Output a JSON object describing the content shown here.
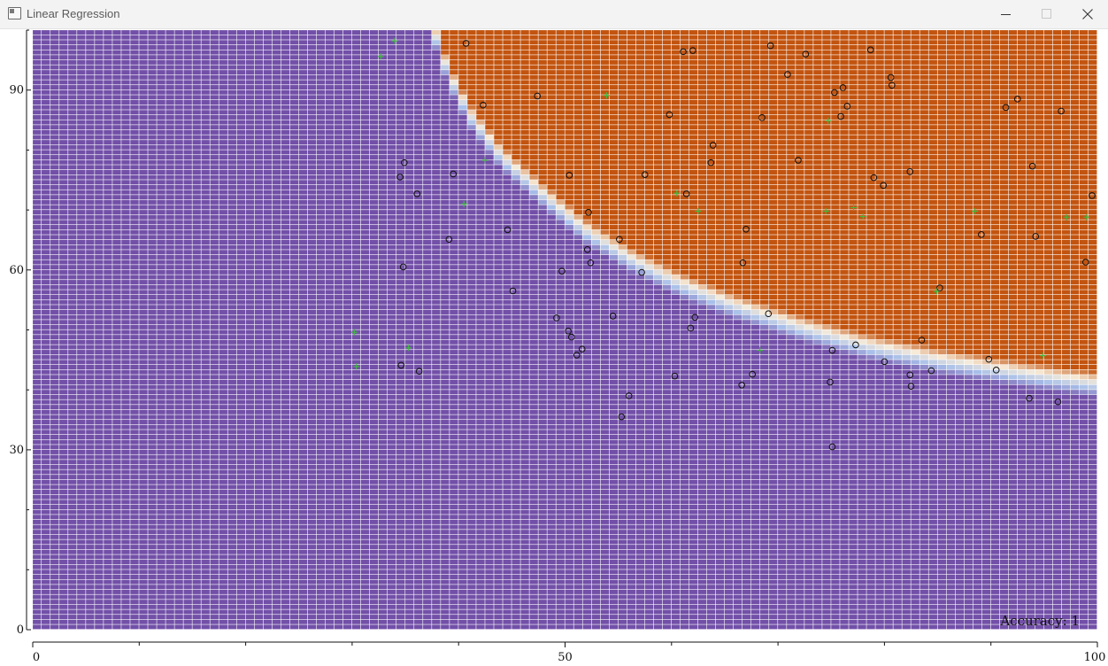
{
  "window": {
    "title": "Linear Regression",
    "controls": [
      "minimize",
      "maximize",
      "close"
    ]
  },
  "chart_data": {
    "type": "scatter",
    "title": "",
    "xlabel": "",
    "ylabel": "",
    "xlim": [
      0,
      100
    ],
    "ylim": [
      0,
      100
    ],
    "x_ticks": [
      0,
      50,
      100
    ],
    "y_ticks": [
      0,
      30,
      60,
      90
    ],
    "accuracy_text": "Accuracy: 1",
    "background": {
      "description": "classification decision map",
      "class_colors": {
        "class_0": "#7250a8",
        "class_1": "#c2540f"
      },
      "boundary_colors": [
        "#a8c0ea",
        "#f7ecd9"
      ],
      "boundary_points": [
        [
          37.5,
          100
        ],
        [
          39,
          92
        ],
        [
          41,
          85
        ],
        [
          44,
          78
        ],
        [
          48,
          71.5
        ],
        [
          52,
          65.5
        ],
        [
          56,
          61
        ],
        [
          61,
          56.5
        ],
        [
          66,
          53
        ],
        [
          72,
          49.5
        ],
        [
          78,
          46.5
        ],
        [
          85,
          44
        ],
        [
          92,
          42
        ],
        [
          100,
          40
        ]
      ]
    },
    "series": [
      {
        "marker": "circle",
        "color": "#111111",
        "points": [
          [
            40.7,
            97.8
          ],
          [
            42.3,
            87.5
          ],
          [
            47.4,
            89.0
          ],
          [
            61.1,
            96.4
          ],
          [
            62.0,
            96.6
          ],
          [
            69.3,
            97.4
          ],
          [
            70.9,
            92.6
          ],
          [
            72.6,
            96.0
          ],
          [
            78.7,
            96.7
          ],
          [
            80.6,
            92.1
          ],
          [
            80.7,
            90.8
          ],
          [
            59.8,
            85.9
          ],
          [
            68.5,
            85.4
          ],
          [
            75.3,
            89.6
          ],
          [
            75.9,
            85.6
          ],
          [
            76.5,
            87.3
          ],
          [
            76.1,
            90.4
          ],
          [
            63.9,
            80.8
          ],
          [
            63.7,
            77.9
          ],
          [
            71.9,
            78.3
          ],
          [
            57.5,
            75.9
          ],
          [
            50.4,
            75.8
          ],
          [
            39.5,
            76.0
          ],
          [
            34.9,
            77.9
          ],
          [
            34.5,
            75.5
          ],
          [
            36.1,
            72.7
          ],
          [
            61.4,
            72.7
          ],
          [
            79.0,
            75.4
          ],
          [
            79.9,
            74.1
          ],
          [
            82.4,
            76.4
          ],
          [
            93.9,
            77.3
          ],
          [
            96.6,
            86.5
          ],
          [
            91.4,
            87.1
          ],
          [
            92.5,
            88.5
          ],
          [
            99.5,
            72.4
          ],
          [
            52.2,
            69.6
          ],
          [
            44.6,
            66.7
          ],
          [
            39.1,
            65.1
          ],
          [
            67.0,
            66.8
          ],
          [
            55.1,
            65.1
          ],
          [
            89.1,
            65.9
          ],
          [
            94.2,
            65.6
          ],
          [
            52.1,
            63.4
          ],
          [
            52.4,
            61.2
          ],
          [
            66.7,
            61.2
          ],
          [
            98.9,
            61.3
          ],
          [
            34.8,
            60.5
          ],
          [
            49.7,
            59.8
          ],
          [
            57.2,
            59.6
          ],
          [
            45.1,
            56.5
          ],
          [
            85.2,
            57.0
          ],
          [
            49.2,
            52.0
          ],
          [
            54.5,
            52.3
          ],
          [
            62.2,
            52.1
          ],
          [
            69.1,
            52.7
          ],
          [
            61.8,
            50.3
          ],
          [
            50.3,
            49.8
          ],
          [
            50.6,
            48.8
          ],
          [
            51.6,
            46.8
          ],
          [
            51.1,
            45.8
          ],
          [
            77.3,
            47.5
          ],
          [
            83.5,
            48.3
          ],
          [
            75.1,
            46.6
          ],
          [
            89.8,
            45.1
          ],
          [
            80.0,
            44.7
          ],
          [
            36.3,
            43.1
          ],
          [
            34.6,
            44.1
          ],
          [
            60.3,
            42.3
          ],
          [
            67.6,
            42.6
          ],
          [
            82.4,
            42.5
          ],
          [
            84.4,
            43.2
          ],
          [
            90.5,
            43.3
          ],
          [
            66.6,
            40.8
          ],
          [
            74.9,
            41.3
          ],
          [
            82.5,
            40.6
          ],
          [
            56.0,
            39.0
          ],
          [
            55.3,
            35.5
          ],
          [
            93.6,
            38.6
          ],
          [
            96.3,
            38.0
          ],
          [
            75.1,
            30.5
          ]
        ]
      },
      {
        "marker": "plus",
        "color": "#3fbb3f",
        "points": [
          [
            34.0,
            98.2
          ],
          [
            32.7,
            95.6
          ],
          [
            53.9,
            89.1
          ],
          [
            74.7,
            84.9
          ],
          [
            42.5,
            78.3
          ],
          [
            40.5,
            71.0
          ],
          [
            60.5,
            72.8
          ],
          [
            62.5,
            69.8
          ],
          [
            74.5,
            69.8
          ],
          [
            77.1,
            70.4
          ],
          [
            78.0,
            68.9
          ],
          [
            88.5,
            69.8
          ],
          [
            97.1,
            68.8
          ],
          [
            99.0,
            68.8
          ],
          [
            84.9,
            56.4
          ],
          [
            30.2,
            49.6
          ],
          [
            35.3,
            47.0
          ],
          [
            68.3,
            46.6
          ],
          [
            94.9,
            45.7
          ],
          [
            30.4,
            43.9
          ]
        ]
      }
    ]
  }
}
